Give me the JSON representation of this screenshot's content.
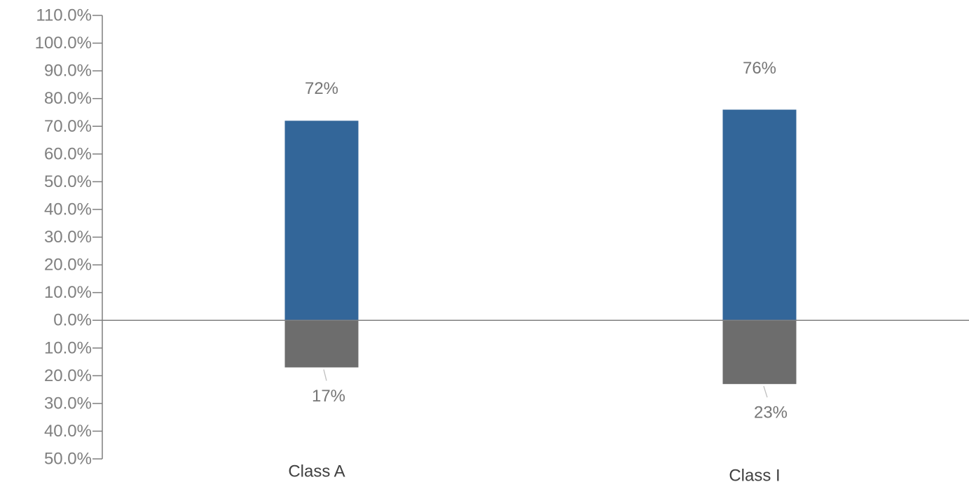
{
  "chart_data": {
    "type": "bar",
    "stacked": true,
    "categories": [
      "Class A",
      "Class I"
    ],
    "series": [
      {
        "values": [
          72,
          76
        ],
        "color": "#336699",
        "labels": [
          "72%",
          "76%"
        ]
      },
      {
        "values": [
          -17,
          -23
        ],
        "color": "#6d6d6d",
        "labels": [
          "17%",
          "23%"
        ]
      }
    ],
    "ylim": [
      -50,
      110
    ],
    "ytick_values": [
      110,
      100,
      90,
      80,
      70,
      60,
      50,
      40,
      30,
      20,
      10,
      0,
      -10,
      -20,
      -30,
      -40,
      -50
    ],
    "ytick_labels": [
      "110.0%",
      "100.0%",
      "90.0%",
      "80.0%",
      "70.0%",
      "60.0%",
      "50.0%",
      "40.0%",
      "30.0%",
      "20.0%",
      "10.0%",
      "0.0%",
      "10.0%",
      "20.0%",
      "30.0%",
      "40.0%",
      "50.0%"
    ],
    "title": "",
    "xlabel": "",
    "ylabel": "",
    "grid": false,
    "legend": "none"
  }
}
